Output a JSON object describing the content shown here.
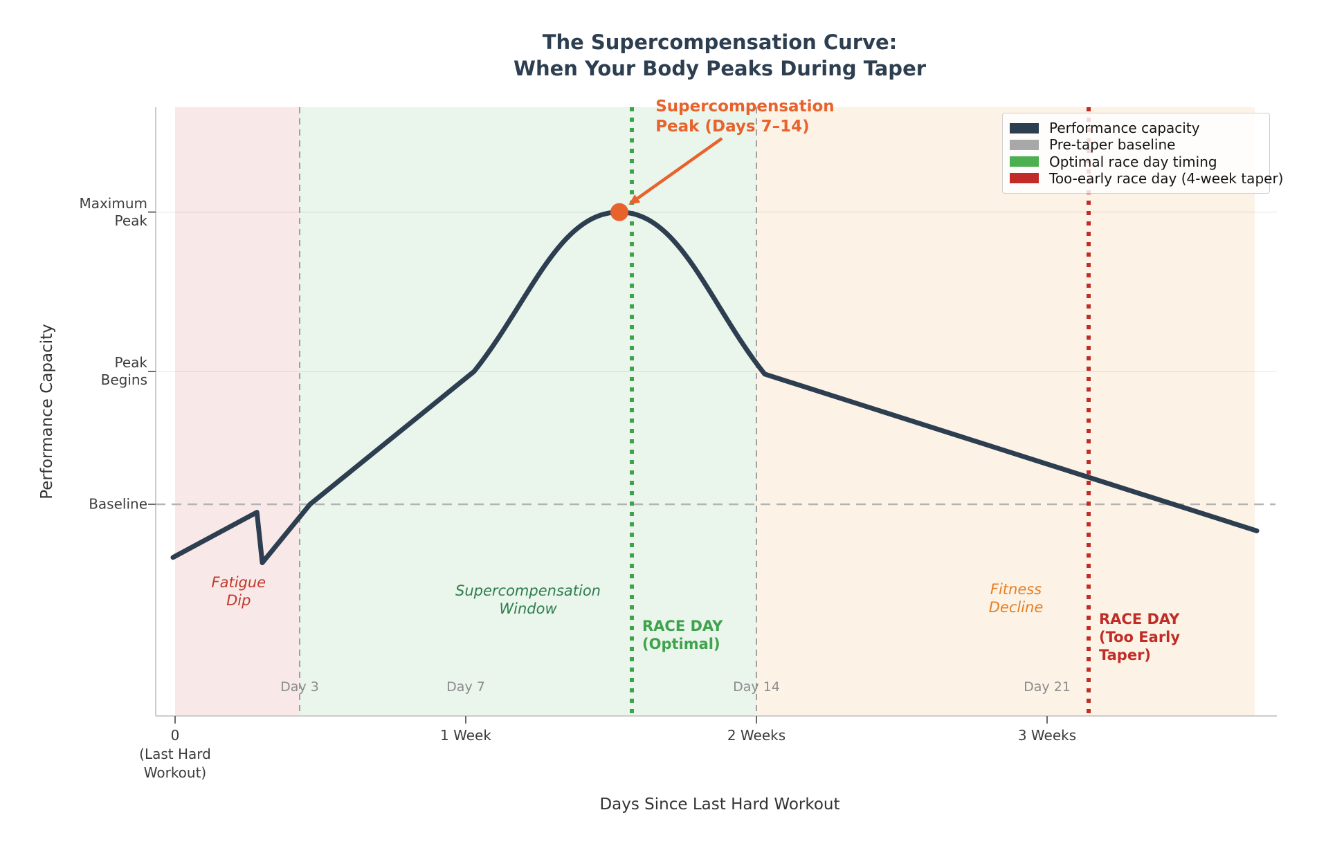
{
  "chart_data": {
    "type": "line",
    "title": "The Supercompensation Curve:\nWhen Your Body Peaks During Taper",
    "xlabel": "Days Since Last Hard Workout",
    "ylabel": "Performance Capacity",
    "axis_ranges": {
      "x_days": [
        -0.45,
        26.55
      ],
      "y_units": [
        -1.6,
        3.0
      ],
      "grid": "faint horizontal at y ticks",
      "legend_position": "upper right"
    },
    "x_ticks": [
      {
        "day": 0,
        "label": "0\n(Last Hard\nWorkout)"
      },
      {
        "day": 7,
        "label": "1 Week"
      },
      {
        "day": 14,
        "label": "2 Weeks"
      },
      {
        "day": 21,
        "label": "3 Weeks"
      }
    ],
    "y_ticks": [
      {
        "perf": 2.2,
        "label": "Maximum\nPeak",
        "gridline": true
      },
      {
        "perf": 1.0,
        "label": "Peak\nBegins",
        "gridline": true
      },
      {
        "perf": 0.0,
        "label": "Baseline",
        "gridline": false
      }
    ],
    "series": [
      {
        "name": "Performance capacity",
        "color": "#2c3e50",
        "pre_peak_points": [
          [
            -0.05,
            -0.4
          ],
          [
            1.97,
            -0.06
          ],
          [
            2.1,
            -0.44
          ],
          [
            3.25,
            0.0
          ],
          [
            7.2,
            1.0
          ]
        ],
        "peak_point": [
          10.7,
          2.2
        ],
        "post_peak_points": [
          [
            14.2,
            0.98
          ],
          [
            26.05,
            -0.2
          ]
        ]
      }
    ],
    "baseline": {
      "label": "Pre-taper baseline",
      "perf": 0.0,
      "color": "#b3b3b3"
    },
    "regions": [
      {
        "id": "fatigue-dip-region",
        "from_day": 0,
        "to_day": 3,
        "fill": "rgba(217,102,102,0.15)"
      },
      {
        "id": "supercompensation-region",
        "from_day": 3,
        "to_day": 14,
        "fill": "rgba(96,178,112,0.13)"
      },
      {
        "id": "fitness-decline-region",
        "from_day": 14,
        "to_day": 26,
        "fill": "rgba(242,166,90,0.15)"
      }
    ],
    "day_gridlines": [
      3,
      14
    ],
    "race_lines": [
      {
        "id": "optimal",
        "day": 11,
        "color": "#3fa24c"
      },
      {
        "id": "too_early",
        "day": 22,
        "color": "#bf2d26"
      }
    ],
    "day_labels": [
      {
        "day": 3,
        "label": "Day 3"
      },
      {
        "day": 7,
        "label": "Day 7"
      },
      {
        "day": 14,
        "label": "Day 14"
      },
      {
        "day": 21,
        "label": "Day 21"
      }
    ],
    "peak_marker": {
      "day": 10.7,
      "perf": 2.2,
      "color": "#e8622b"
    },
    "peak_arrow": {
      "from_day": 13.17,
      "from_perf": 2.755,
      "to_day": 10.92,
      "to_perf": 2.255,
      "color": "#e8622b"
    },
    "annotations": {
      "peak_label": {
        "text": "Supercompensation\nPeak (Days 7–14)",
        "day": 11.57,
        "perf": 3.07,
        "color": "#e8622b",
        "anchor": "left-top",
        "style": "bold-large"
      },
      "fatigue_dip": {
        "text": "Fatigue\nDip",
        "day": 1.53,
        "perf": -0.655,
        "color": "#c0392b",
        "anchor": "center",
        "style": "italic"
      },
      "supercomp_window": {
        "text": "Supercompensation\nWindow",
        "day": 8.5,
        "perf": -0.72,
        "color": "#2e7d4f",
        "anchor": "center",
        "style": "italic"
      },
      "fitness_decline": {
        "text": "Fitness\nDecline",
        "day": 20.25,
        "perf": -0.71,
        "color": "#e67e22",
        "anchor": "center",
        "style": "italic"
      },
      "race_optimal": {
        "text": "RACE DAY\n(Optimal)",
        "day": 11.25,
        "perf": -0.985,
        "color": "#3fa24c",
        "anchor": "left-middle",
        "style": "bold"
      },
      "race_too_early": {
        "text": "RACE DAY\n(Too Early\nTaper)",
        "day": 22.25,
        "perf": -1.0,
        "color": "#bf2d26",
        "anchor": "left-middle",
        "style": "bold"
      }
    },
    "legend": {
      "items": [
        {
          "label": "Performance capacity",
          "color": "#2c3e50"
        },
        {
          "label": "Pre-taper baseline",
          "color": "#a8a8a8"
        },
        {
          "label": "Optimal race day timing",
          "color": "#4caf50"
        },
        {
          "label": "Too-early race day (4-week taper)",
          "color": "#c12b28"
        }
      ]
    }
  }
}
